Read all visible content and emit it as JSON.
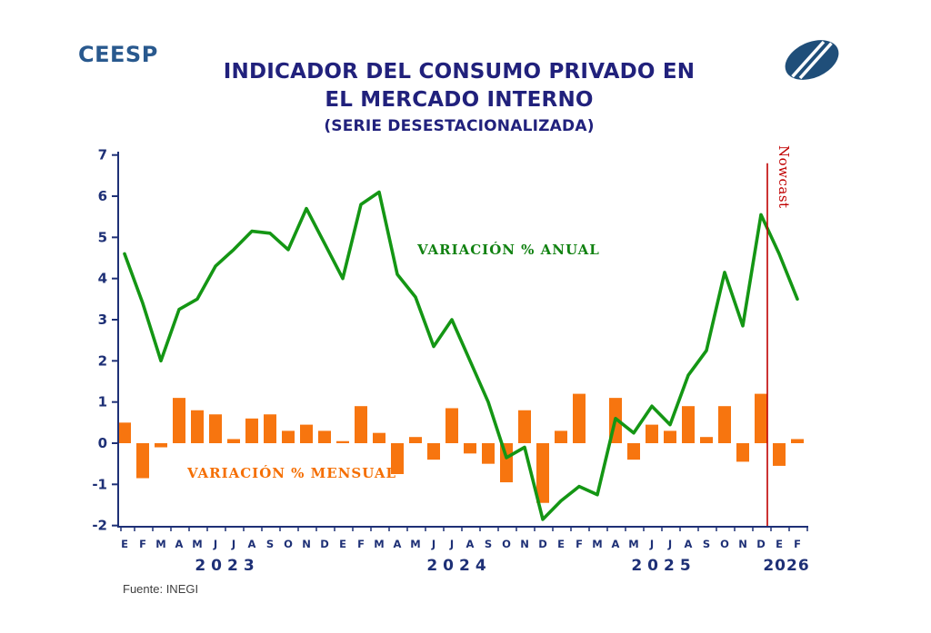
{
  "header": {
    "brand": "CEESP",
    "title_line1": "INDICADOR DEL CONSUMO PRIVADO EN",
    "title_line2": "EL MERCADO INTERNO",
    "subtitle": "(SERIE DESESTACIONALIZADA)"
  },
  "footer": {
    "source": "Fuente: INEGI"
  },
  "colors": {
    "navy": "#1e3076",
    "title_navy": "#21217c",
    "brand_blue": "#29598e",
    "logo_blue": "#1f4e79",
    "annual_green": "#149614",
    "monthly_orange": "#f7750f",
    "nowcast_red": "#c00000",
    "source_grey": "#3f3f3f"
  },
  "chart_data": {
    "type": "line+bar",
    "title": "INDICADOR DEL CONSUMO PRIVADO EN EL MERCADO INTERNO (SERIE DESESTACIONALIZADA)",
    "ylim": [
      -2,
      7
    ],
    "yticks": [
      7,
      6,
      5,
      4,
      3,
      2,
      1,
      0,
      -1,
      -2
    ],
    "grid": false,
    "legend_position": "inline-annotations",
    "x_months": [
      "E",
      "F",
      "M",
      "A",
      "M",
      "J",
      "J",
      "A",
      "S",
      "O",
      "N",
      "D",
      "E",
      "F",
      "M",
      "A",
      "M",
      "J",
      "J",
      "A",
      "S",
      "O",
      "N",
      "D",
      "E",
      "F",
      "M",
      "A",
      "M",
      "J",
      "J",
      "A",
      "S",
      "O",
      "N",
      "D",
      "E",
      "F"
    ],
    "years": [
      {
        "label": "2023",
        "center_month_index": 5.65,
        "letter_spacing": 6
      },
      {
        "label": "2024",
        "center_month_index": 18.4,
        "letter_spacing": 6
      },
      {
        "label": "2025",
        "center_month_index": 29.65,
        "letter_spacing": 6
      },
      {
        "label": "2026",
        "center_month_index": 36.4,
        "letter_spacing": 1
      }
    ],
    "series": [
      {
        "name": "VARIACIÓN % ANUAL",
        "type": "line",
        "color": "#149614",
        "values": [
          4.6,
          3.4,
          2.0,
          3.25,
          3.5,
          4.3,
          4.7,
          5.15,
          5.1,
          4.7,
          5.7,
          4.85,
          4.0,
          5.8,
          6.1,
          4.1,
          3.55,
          2.35,
          3.0,
          2.0,
          1.0,
          -0.35,
          -0.1,
          -1.85,
          -1.4,
          -1.05,
          -1.25,
          0.6,
          0.25,
          0.9,
          0.45,
          1.65,
          2.25,
          4.15,
          2.85,
          5.55,
          4.6,
          3.5
        ]
      },
      {
        "name": "VARIACIÓN % MENSUAL",
        "type": "bar",
        "color": "#f7750f",
        "values": [
          0.5,
          -0.85,
          -0.1,
          1.1,
          0.8,
          0.7,
          0.1,
          0.6,
          0.7,
          0.3,
          0.45,
          0.3,
          0.05,
          0.9,
          0.25,
          -0.75,
          0.15,
          -0.4,
          0.85,
          -0.25,
          -0.5,
          -0.95,
          0.8,
          -1.45,
          0.3,
          1.2,
          0.0,
          1.1,
          -0.4,
          0.45,
          0.3,
          0.9,
          0.15,
          0.9,
          -0.45,
          1.2,
          -0.55,
          0.1
        ]
      }
    ],
    "annotations": {
      "nowcast": {
        "label": "Nowcast",
        "month_index": 35.35,
        "line_top_value": 6.8,
        "color": "#c00000"
      }
    }
  }
}
